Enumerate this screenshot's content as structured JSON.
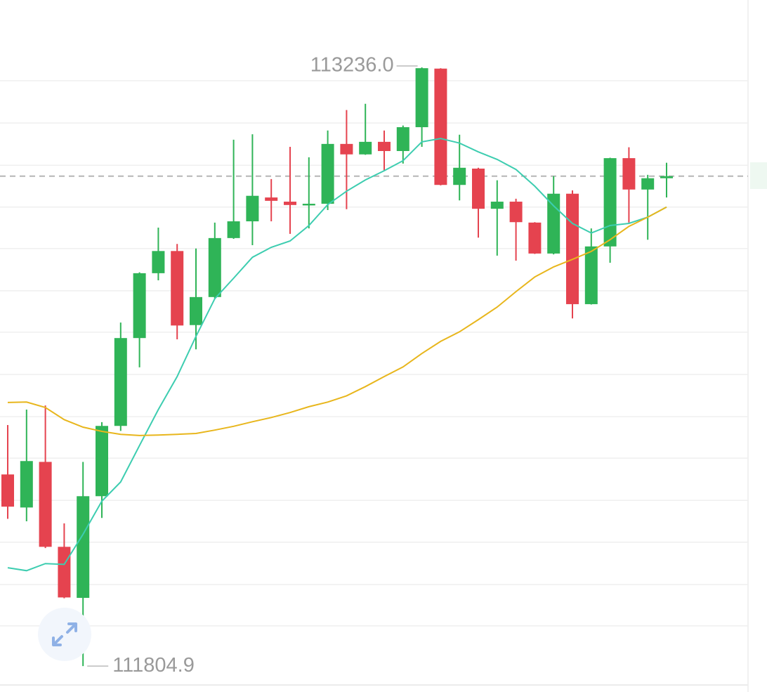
{
  "chart_data": {
    "type": "candlestick",
    "up_color": "#2fb457",
    "down_color": "#e5434f",
    "ylim": [
      111743,
      113397
    ],
    "ygrid": [
      113204,
      113103,
      113002,
      112902,
      112803,
      112702,
      112603,
      112502,
      112401,
      112302,
      112201,
      112101,
      112000,
      111901
    ],
    "candles": {
      "open": [
        112263,
        112184,
        112293,
        112090,
        111968,
        112211,
        112379,
        112589,
        112744,
        112797,
        112620,
        112687,
        112828,
        112868,
        112925,
        112915,
        112906,
        112910,
        113053,
        113028,
        113058,
        113036,
        113093,
        113233,
        112955,
        112994,
        112898,
        112915,
        112865,
        112791,
        112934,
        112670,
        112808,
        113019,
        112944,
        112971
      ],
      "high": [
        112381,
        112418,
        112428,
        112146,
        112293,
        112388,
        112626,
        112746,
        112853,
        112814,
        112803,
        112865,
        113063,
        113076,
        112969,
        113046,
        113021,
        113085,
        113134,
        113149,
        113085,
        113097,
        113236.0,
        113234,
        113075,
        112996,
        112966,
        112922,
        112866,
        112976,
        112942,
        112851,
        113020,
        113045,
        112979,
        113008
      ],
      "low": [
        112157,
        112151,
        112087,
        111967,
        111804.9,
        112159,
        112367,
        112519,
        112727,
        112586,
        112562,
        112683,
        112826,
        112811,
        112868,
        112838,
        112851,
        112895,
        112897,
        113027,
        112989,
        113006,
        113046,
        112954,
        112918,
        112829,
        112786,
        112774,
        112790,
        112789,
        112636,
        112669,
        112769,
        112865,
        112824,
        112925
      ],
      "close": [
        112186,
        112295,
        112090,
        111969,
        112211,
        112379,
        112589,
        112744,
        112797,
        112619,
        112687,
        112828,
        112868,
        112929,
        112917,
        112907,
        112910,
        113053,
        113028,
        113058,
        113036,
        113093,
        113234,
        112955,
        112996,
        112898,
        112915,
        112866,
        112791,
        112934,
        112670,
        112808,
        113019,
        112944,
        112971,
        112976
      ]
    },
    "lines": [
      {
        "color": "#3dcdb0",
        "values": [
          112040,
          112033,
          112050,
          112048,
          112120,
          112199,
          112245,
          112332,
          112418,
          112497,
          112593,
          112683,
          112732,
          112782,
          112806,
          112821,
          112858,
          112908,
          112940,
          112967,
          112989,
          113013,
          113058,
          113066,
          113055,
          113034,
          113016,
          112992,
          112952,
          112905,
          112863,
          112840,
          112858,
          112863,
          112878,
          112902
        ]
      },
      {
        "color": "#e8b61c",
        "values": [
          112435,
          112436,
          112423,
          112394,
          112376,
          112366,
          112359,
          112356,
          112357,
          112359,
          112361,
          112369,
          112378,
          112389,
          112399,
          112411,
          112425,
          112436,
          112451,
          112473,
          112497,
          112520,
          112552,
          112581,
          112604,
          112633,
          112663,
          112700,
          112735,
          112759,
          112777,
          112796,
          112824,
          112856,
          112878,
          112902
        ]
      }
    ],
    "high_label": "113236.0",
    "low_label": "111804.9"
  }
}
